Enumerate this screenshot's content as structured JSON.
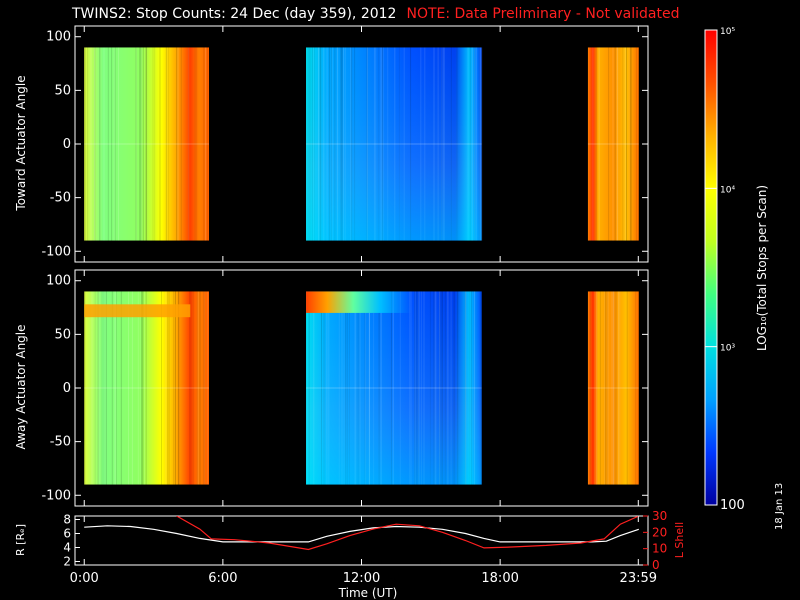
{
  "title": {
    "main": "TWINS2: Stop Counts: 24 Dec (day 359), 2012",
    "note": "NOTE: Data Preliminary - Not validated"
  },
  "side_label": "18 Jan 13",
  "chart_data": [
    {
      "type": "heatmap",
      "name": "toward",
      "ylabel": "Toward Actuator Angle",
      "ylim": [
        -110,
        110
      ],
      "yticks": [
        100,
        50,
        0,
        -50,
        -100
      ],
      "data_range_angle": [
        -90,
        90
      ],
      "data_intervals_hours": [
        [
          0.0,
          5.4
        ],
        [
          9.6,
          17.2
        ],
        [
          21.8,
          24.0
        ]
      ]
    },
    {
      "type": "heatmap",
      "name": "away",
      "ylabel": "Away Actuator Angle",
      "ylim": [
        -110,
        110
      ],
      "yticks": [
        100,
        50,
        0,
        -50,
        -100
      ],
      "data_range_angle": [
        -90,
        90
      ],
      "data_intervals_hours": [
        [
          0.0,
          5.4
        ],
        [
          9.6,
          17.2
        ],
        [
          21.8,
          24.0
        ]
      ]
    },
    {
      "type": "line",
      "name": "orbit",
      "ylabel_left": "R [Rₑ]",
      "ylabel_right": "L Shell",
      "xlabel": "Time (UT)",
      "xlim": [
        -0.4,
        24.4
      ],
      "xticks": [
        "0:00",
        "6:00",
        "12:00",
        "18:00",
        "23:59"
      ],
      "xtick_hours": [
        0,
        6,
        12,
        18,
        23.98
      ],
      "ylim_left": [
        1.5,
        8.5
      ],
      "yticks_left": [
        8,
        6,
        4,
        2
      ],
      "ylim_right": [
        0,
        30
      ],
      "yticks_right": [
        30,
        20,
        10,
        0
      ],
      "series": [
        {
          "name": "R",
          "color": "#ffffff",
          "x": [
            0,
            1,
            2,
            3,
            4,
            5,
            6,
            7,
            8,
            9,
            9.7,
            10.5,
            11.5,
            12.5,
            13.5,
            14.5,
            15.5,
            16.5,
            17.3,
            18,
            19,
            20,
            21,
            22,
            22.6,
            23.2,
            24
          ],
          "y": [
            6.9,
            7.1,
            7.0,
            6.6,
            6.0,
            5.3,
            4.8,
            4.8,
            4.8,
            4.8,
            4.8,
            5.6,
            6.3,
            6.8,
            7.0,
            6.9,
            6.6,
            6.0,
            5.3,
            4.8,
            4.8,
            4.8,
            4.8,
            4.8,
            4.9,
            5.7,
            6.6
          ]
        },
        {
          "name": "L Shell",
          "color": "#ff2020",
          "x": [
            4.0,
            5.0,
            5.5,
            6.5,
            8.0,
            9.7,
            10.5,
            11.5,
            12.5,
            13.5,
            14.5,
            15.5,
            16.5,
            17.3,
            18.5,
            20,
            21.5,
            22.5,
            23.2,
            24
          ],
          "y": [
            30,
            22,
            16,
            15.5,
            13.5,
            9.5,
            13,
            18,
            22,
            25,
            24,
            20,
            15,
            10.5,
            11,
            12,
            13.5,
            16,
            25,
            30
          ]
        }
      ]
    }
  ],
  "colorbar": {
    "label": "LOG₁₀(Total Stops per Scan)",
    "ticks": [
      {
        "label": "10⁵",
        "value": 100000
      },
      {
        "label": "10⁴",
        "value": 10000
      },
      {
        "label": "10³",
        "value": 1000
      },
      {
        "label": "100",
        "value": 100
      }
    ],
    "range": [
      100,
      100000
    ],
    "colors": [
      "#0000a0",
      "#0038ff",
      "#00a0ff",
      "#00e0e0",
      "#40ff80",
      "#c0ff20",
      "#ffff00",
      "#ffb000",
      "#ff5000",
      "#ff0000"
    ]
  }
}
